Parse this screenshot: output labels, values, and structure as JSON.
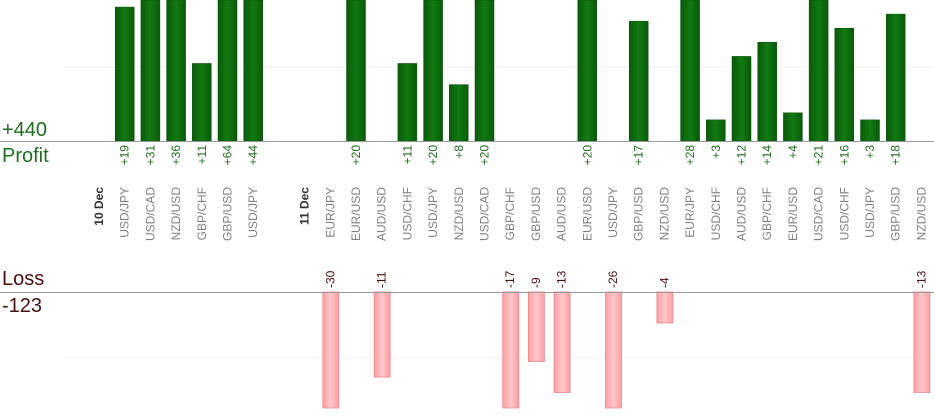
{
  "summary": {
    "profit_total": "+440",
    "profit_label": "Profit",
    "loss_label": "Loss",
    "loss_total": "-123"
  },
  "colors": {
    "profit_bar": "#0f6a0f",
    "profit_text": "#1f6e1f",
    "loss_bar": "#ffb6b9",
    "loss_text": "#4a1010",
    "pair_text": "#808080",
    "date_text": "#333333"
  },
  "chart_data": {
    "type": "bar",
    "profit_scale_max": 20,
    "loss_scale_max": 15,
    "columns": [
      {
        "pair": "10 Dec",
        "is_date": true
      },
      {
        "pair": "USD/JPY",
        "profit": "+19",
        "value": 19
      },
      {
        "pair": "USD/CAD",
        "profit": "+31",
        "value": 31
      },
      {
        "pair": "NZD/USD",
        "profit": "+36",
        "value": 36
      },
      {
        "pair": "GBP/CHF",
        "profit": "+11",
        "value": 11
      },
      {
        "pair": "GBP/USD",
        "profit": "+64",
        "value": 64
      },
      {
        "pair": "USD/JPY",
        "profit": "+44",
        "value": 44
      },
      {
        "pair": "",
        "is_spacer": true
      },
      {
        "pair": "11 Dec",
        "is_date": true
      },
      {
        "pair": "EUR/JPY",
        "loss": "-30",
        "value": -30
      },
      {
        "pair": "EUR/USD",
        "profit": "+20",
        "value": 20
      },
      {
        "pair": "AUD/USD",
        "loss": "-11",
        "value": -11
      },
      {
        "pair": "USD/CHF",
        "profit": "+11",
        "value": 11
      },
      {
        "pair": "USD/JPY",
        "profit": "+20",
        "value": 20
      },
      {
        "pair": "NZD/USD",
        "profit": "+8",
        "value": 8
      },
      {
        "pair": "USD/CAD",
        "profit": "+20",
        "value": 20
      },
      {
        "pair": "GBP/CHF",
        "loss": "-17",
        "value": -17
      },
      {
        "pair": "GBP/USD",
        "loss": "-9",
        "value": -9
      },
      {
        "pair": "AUD/USD",
        "loss": "-13",
        "value": -13
      },
      {
        "pair": "EUR/USD",
        "profit": "+20",
        "value": 20
      },
      {
        "pair": "USD/JPY",
        "loss": "-26",
        "value": -26
      },
      {
        "pair": "GBP/USD",
        "profit": "+17",
        "value": 17
      },
      {
        "pair": "NZD/USD",
        "loss": "-4",
        "value": -4
      },
      {
        "pair": "EUR/JPY",
        "profit": "+28",
        "value": 28
      },
      {
        "pair": "USD/CHF",
        "profit": "+3",
        "value": 3
      },
      {
        "pair": "AUD/USD",
        "profit": "+12",
        "value": 12
      },
      {
        "pair": "GBP/CHF",
        "profit": "+14",
        "value": 14
      },
      {
        "pair": "EUR/USD",
        "profit": "+4",
        "value": 4
      },
      {
        "pair": "USD/CAD",
        "profit": "+21",
        "value": 21
      },
      {
        "pair": "USD/CHF",
        "profit": "+16",
        "value": 16
      },
      {
        "pair": "USD/JPY",
        "profit": "+3",
        "value": 3
      },
      {
        "pair": "GBP/USD",
        "profit": "+18",
        "value": 18
      },
      {
        "pair": "NZD/USD",
        "loss": "-13",
        "value": -13
      }
    ]
  }
}
